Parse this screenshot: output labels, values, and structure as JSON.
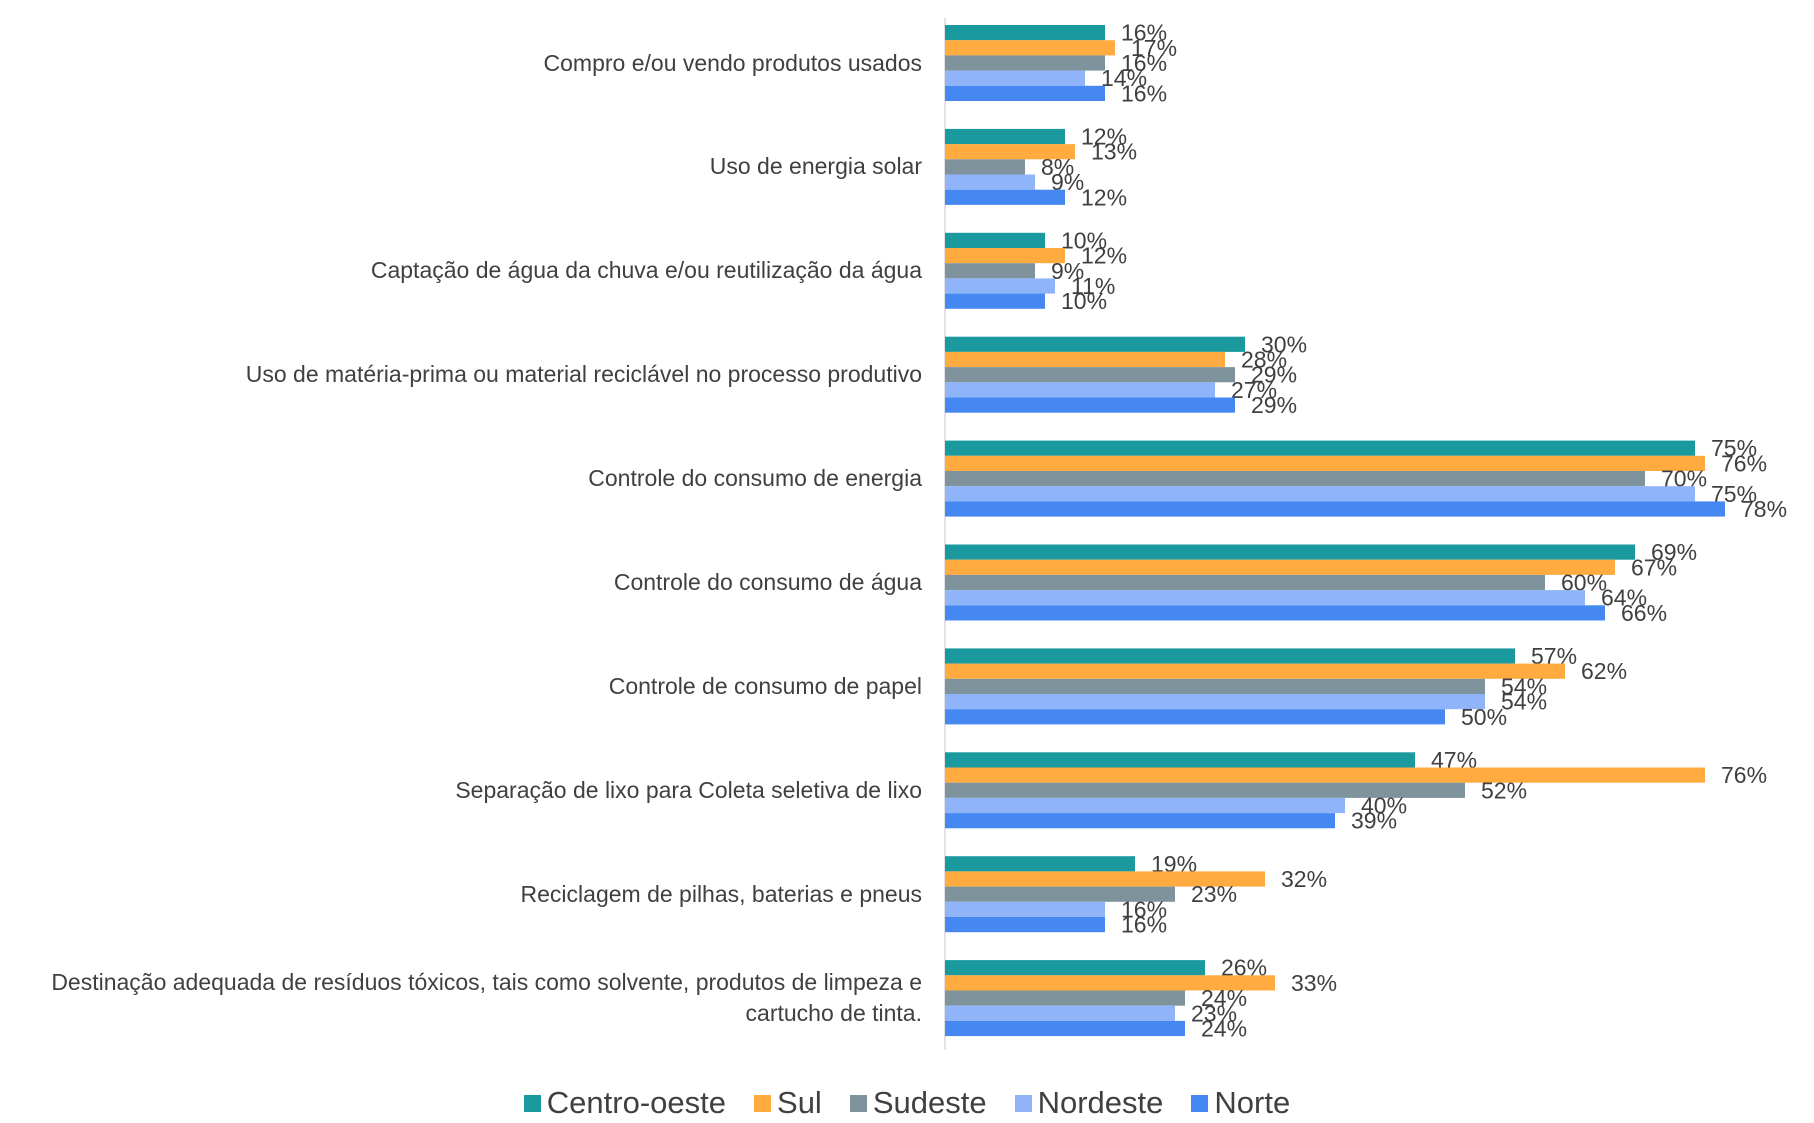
{
  "chart_data": {
    "type": "bar",
    "orientation": "horizontal",
    "categories": [
      "Compro e/ou vendo produtos usados",
      "Uso de energia solar",
      "Captação de água da chuva e/ou reutilização da água",
      "Uso de matéria-prima ou material reciclável no processo produtivo",
      "Controle do consumo de energia",
      "Controle do consumo de água",
      "Controle de consumo de papel",
      "Separação de lixo para Coleta seletiva de lixo",
      "Reciclagem de pilhas, baterias e pneus",
      "Destinação adequada de resíduos tóxicos, tais como solvente, produtos de limpeza e cartucho de tinta."
    ],
    "series": [
      {
        "name": "Centro-oeste",
        "color": "#1a9a9e",
        "values": [
          16,
          12,
          10,
          30,
          75,
          69,
          57,
          47,
          19,
          26
        ]
      },
      {
        "name": "Sul",
        "color": "#ffab40",
        "values": [
          17,
          13,
          12,
          28,
          76,
          67,
          62,
          76,
          32,
          33
        ]
      },
      {
        "name": "Sudeste",
        "color": "#7f939c",
        "values": [
          16,
          8,
          9,
          29,
          70,
          60,
          54,
          52,
          23,
          24
        ]
      },
      {
        "name": "Nordeste",
        "color": "#90b4f9",
        "values": [
          14,
          9,
          11,
          27,
          75,
          64,
          54,
          40,
          16,
          23
        ]
      },
      {
        "name": "Norte",
        "color": "#4688f1",
        "values": [
          16,
          12,
          10,
          29,
          78,
          66,
          50,
          39,
          16,
          24
        ]
      }
    ],
    "value_suffix": "%",
    "xlim": [
      0,
      80
    ],
    "grid": false,
    "legend_position": "bottom"
  }
}
